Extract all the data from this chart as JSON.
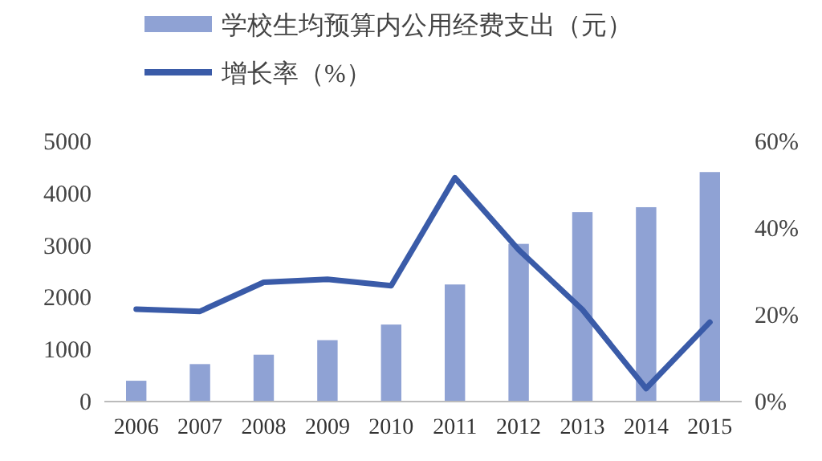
{
  "chart_data": {
    "type": "bar",
    "categories": [
      "2006",
      "2007",
      "2008",
      "2009",
      "2010",
      "2011",
      "2012",
      "2013",
      "2014",
      "2015"
    ],
    "series": [
      {
        "name": "学校生均预算内公用经费支出（元）",
        "color": "#8fa2d4",
        "values": [
          400,
          720,
          900,
          1180,
          1480,
          2250,
          3030,
          3640,
          3735,
          4410
        ]
      },
      {
        "name": "增长率（%）",
        "type": "line",
        "axis": "y2",
        "color": "#3a5ba8",
        "values": [
          21.3,
          20.8,
          27.5,
          28.2,
          26.7,
          51.6,
          35,
          21.2,
          3,
          18.3
        ]
      }
    ],
    "ylim": [
      0,
      5000
    ],
    "yticks": [
      0,
      1000,
      2000,
      3000,
      4000,
      5000
    ],
    "y2lim": [
      0,
      60
    ],
    "y2ticks": [
      {
        "value": 0,
        "label": "0%"
      },
      {
        "value": 20,
        "label": "20%"
      },
      {
        "value": 40,
        "label": "40%"
      },
      {
        "value": 60,
        "label": "60%"
      }
    ],
    "legend": "top left",
    "grid": false
  }
}
